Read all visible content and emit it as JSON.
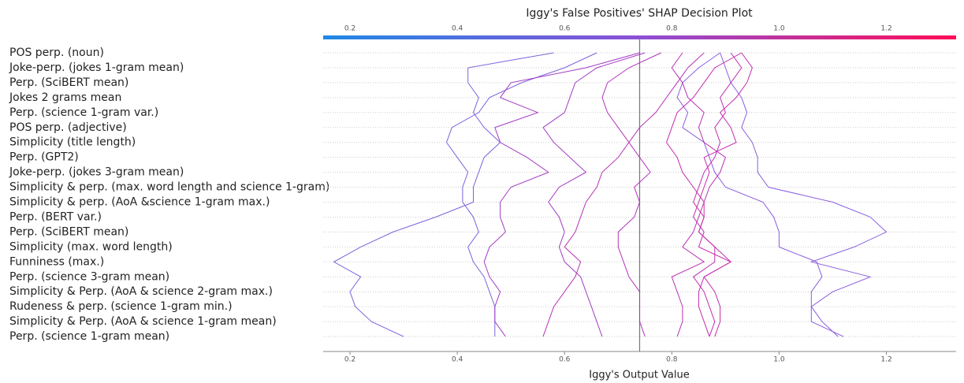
{
  "chart_data": {
    "type": "decision",
    "title": "Iggy's False Positives' SHAP Decision Plot",
    "xlabel": "Iggy's Output Value",
    "categories": [
      "POS perp. (noun)",
      "Joke-perp. (jokes 1-gram mean)",
      "Perp. (SciBERT mean)",
      "Jokes 2 grams mean",
      "Perp. (science 1-gram var.)",
      "POS perp. (adjective)",
      "Simplicity (title length)",
      "Perp. (GPT2)",
      "Joke-perp. (jokes 3-gram mean)",
      "Simplicity & perp. (max. word length and science 1-gram)",
      "Simplicity & perp. (AoA &science 1-gram max.)",
      "Perp. (BERT var.)",
      "Perp. (SciBERT mean)",
      "Simplicity (max. word length)",
      "Funniness (max.)",
      "Perp. (science 3-gram mean)",
      "Simplicity & Perp. (AoA & science 2-gram max.)",
      "Rudeness & perp. (science 1-gram min.)",
      "Simplicity & Perp. (AoA & science 1-gram mean)",
      "Perp. (science 1-gram mean)"
    ],
    "xlim": [
      0.15,
      1.33
    ],
    "xticks": [
      0.2,
      0.4,
      0.6,
      0.8,
      {
        "value": 1,
        "label": "1.0"
      },
      1.2
    ],
    "base_value": 0.74,
    "grid": true,
    "series": [
      {
        "color": "#7f62dc",
        "values": [
          0.58,
          0.42,
          0.42,
          0.44,
          0.43,
          0.45,
          0.48,
          0.45,
          0.44,
          0.43,
          0.43,
          0.36,
          0.28,
          0.22,
          0.17,
          0.22,
          0.2,
          0.21,
          0.24,
          0.3
        ]
      },
      {
        "color": "#8a5ee0",
        "values": [
          0.89,
          0.9,
          0.91,
          0.93,
          0.94,
          0.93,
          0.95,
          0.96,
          0.96,
          0.98,
          1.1,
          1.17,
          1.2,
          1.14,
          1.06,
          1.17,
          1.1,
          1.06,
          1.06,
          1.12
        ]
      },
      {
        "color": "#8a5ee0",
        "values": [
          0.89,
          0.85,
          0.82,
          0.81,
          0.83,
          0.82,
          0.86,
          0.87,
          0.88,
          0.9,
          0.97,
          0.99,
          1.0,
          1.0,
          1.07,
          1.08,
          1.06,
          1.06,
          1.08,
          1.11
        ]
      },
      {
        "color": "#7f62dc",
        "values": [
          0.66,
          0.6,
          0.52,
          0.46,
          0.44,
          0.39,
          0.38,
          0.4,
          0.42,
          0.41,
          0.41,
          0.43,
          0.44,
          0.42,
          0.43,
          0.45,
          0.46,
          0.47,
          0.47,
          0.47
        ]
      },
      {
        "color": "#a33cc4",
        "values": [
          0.74,
          0.64,
          0.5,
          0.48,
          0.55,
          0.47,
          0.48,
          0.53,
          0.57,
          0.5,
          0.48,
          0.48,
          0.49,
          0.46,
          0.45,
          0.46,
          0.48,
          0.47,
          0.47,
          0.49
        ]
      },
      {
        "color": "#a33cc4",
        "values": [
          0.75,
          0.66,
          0.62,
          0.61,
          0.6,
          0.56,
          0.58,
          0.61,
          0.64,
          0.59,
          0.57,
          0.59,
          0.6,
          0.59,
          0.6,
          0.63,
          0.64,
          0.65,
          0.66,
          0.67
        ]
      },
      {
        "color": "#b134bc",
        "values": [
          0.78,
          0.72,
          0.68,
          0.67,
          0.68,
          0.7,
          0.72,
          0.74,
          0.76,
          0.73,
          0.74,
          0.73,
          0.7,
          0.7,
          0.71,
          0.72,
          0.74,
          0.74,
          0.74,
          0.75
        ]
      },
      {
        "color": "#b932b5",
        "values": [
          0.82,
          0.8,
          0.82,
          0.83,
          0.86,
          0.85,
          0.86,
          0.9,
          0.89,
          0.87,
          0.86,
          0.85,
          0.84,
          0.82,
          0.86,
          0.8,
          0.81,
          0.82,
          0.82,
          0.81
        ]
      },
      {
        "color": "#c22db0",
        "values": [
          0.91,
          0.93,
          0.91,
          0.89,
          0.9,
          0.88,
          0.89,
          0.88,
          0.86,
          0.85,
          0.84,
          0.86,
          0.85,
          0.88,
          0.88,
          0.84,
          0.86,
          0.87,
          0.88,
          0.87
        ]
      },
      {
        "color": "#c42cae",
        "values": [
          0.93,
          0.95,
          0.94,
          0.92,
          0.89,
          0.91,
          0.92,
          0.86,
          0.87,
          0.86,
          0.85,
          0.84,
          0.86,
          0.85,
          0.91,
          0.86,
          0.88,
          0.89,
          0.89,
          0.88
        ]
      },
      {
        "color": "#c42cae",
        "values": [
          0.93,
          0.88,
          0.86,
          0.84,
          0.81,
          0.8,
          0.79,
          0.81,
          0.82,
          0.84,
          0.86,
          0.86,
          0.85,
          0.88,
          0.91,
          0.86,
          0.85,
          0.85,
          0.86,
          0.87
        ]
      },
      {
        "color": "#b932b5",
        "values": [
          0.86,
          0.83,
          0.81,
          0.79,
          0.77,
          0.74,
          0.72,
          0.7,
          0.67,
          0.66,
          0.64,
          0.63,
          0.62,
          0.6,
          0.63,
          0.62,
          0.6,
          0.58,
          0.57,
          0.56
        ]
      }
    ]
  }
}
